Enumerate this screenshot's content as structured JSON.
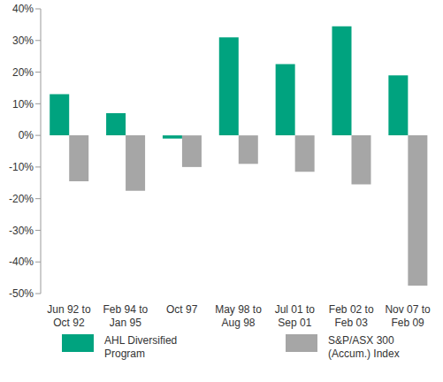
{
  "chart_data": {
    "type": "bar",
    "categories": [
      "Jun 92 to Oct 92",
      "Feb 94 to Jan 95",
      "Oct 97",
      "May 98 to Aug 98",
      "Jul 01 to Sep 01",
      "Feb 02 to Feb 03",
      "Nov 07 to Feb 09"
    ],
    "series": [
      {
        "name": "AHL Diversified Program",
        "color": "#00a37f",
        "values": [
          13,
          7,
          -1,
          31,
          22.5,
          34.5,
          19
        ]
      },
      {
        "name": "S&P/ASX 300 (Accum.) Index",
        "color": "#a6a6a6",
        "values": [
          -14.5,
          -17.5,
          -10,
          -9,
          -11.5,
          -15.5,
          -47.5
        ]
      }
    ],
    "ylim": [
      -50,
      40
    ],
    "yticks": [
      {
        "value": -50,
        "label": "-50%"
      },
      {
        "value": -40,
        "label": "-40%"
      },
      {
        "value": -30,
        "label": "-30%"
      },
      {
        "value": -20,
        "label": "-20%"
      },
      {
        "value": -10,
        "label": "-10%"
      },
      {
        "value": 0,
        "label": "0%"
      },
      {
        "value": 10,
        "label": "10%"
      },
      {
        "value": 20,
        "label": "20%"
      },
      {
        "value": 30,
        "label": "30%"
      },
      {
        "value": 40,
        "label": "40%"
      }
    ],
    "grid": false,
    "legend": "bottom"
  }
}
